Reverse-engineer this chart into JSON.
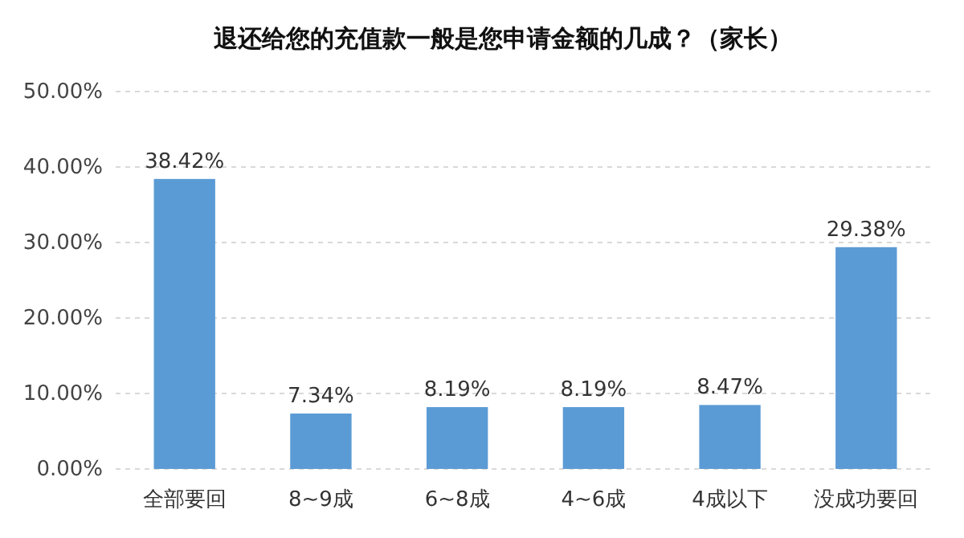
{
  "chart_data": {
    "type": "bar",
    "title": "退还给您的充值款一般是您申请金额的几成？（家长）",
    "categories": [
      "全部要回",
      "8~9成",
      "6~8成",
      "4~6成",
      "4成以下",
      "没成功要回"
    ],
    "values": [
      38.42,
      7.34,
      8.19,
      8.19,
      8.47,
      29.38
    ],
    "value_labels": [
      "38.42%",
      "7.34%",
      "8.19%",
      "8.19%",
      "8.47%",
      "29.38%"
    ],
    "color": "#5b9bd5",
    "ylim": [
      0,
      50
    ],
    "yticks": [
      {
        "value": 0,
        "label": "0.00%"
      },
      {
        "value": 10,
        "label": "10.00%"
      },
      {
        "value": 20,
        "label": "20.00%"
      },
      {
        "value": 30,
        "label": "30.00%"
      },
      {
        "value": 40,
        "label": "40.00%"
      },
      {
        "value": 50,
        "label": "50.00%"
      }
    ],
    "grid": "y"
  }
}
